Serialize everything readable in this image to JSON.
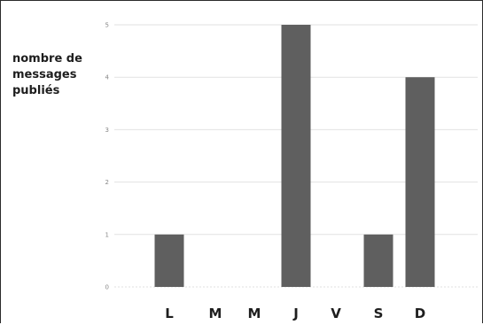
{
  "chart_data": {
    "type": "bar",
    "ylabel_lines": [
      "nombre de",
      "messages",
      "publiés"
    ],
    "categories": [
      "L",
      "M",
      "M",
      "J",
      "V",
      "S",
      "D"
    ],
    "values": [
      1,
      0,
      0,
      5,
      0,
      1,
      4
    ],
    "yticks": [
      "0",
      "1",
      "2",
      "3",
      "4",
      "5"
    ],
    "ylim": [
      0,
      5
    ],
    "grid": true,
    "bar_color": "#5f5f5f",
    "grid_color": "#e2e2e2"
  }
}
